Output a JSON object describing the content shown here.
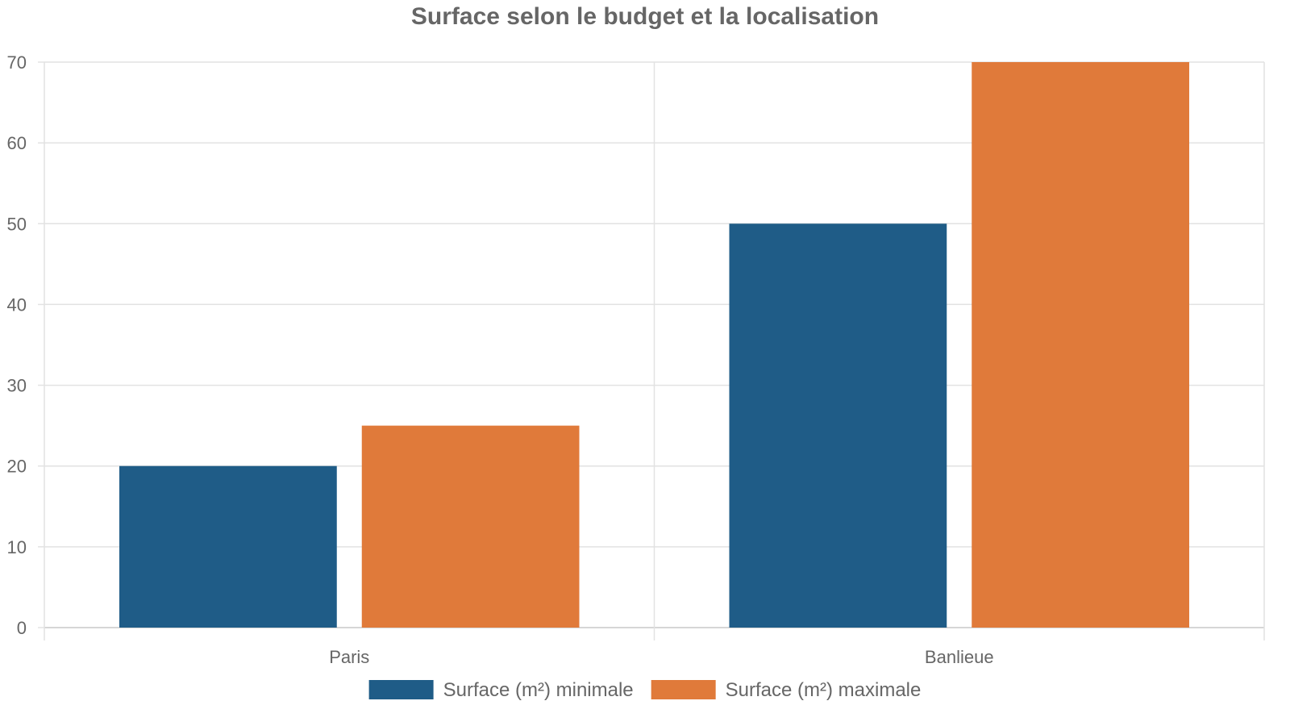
{
  "chart_data": {
    "type": "bar",
    "title": "Surface selon le budget et la localisation",
    "xlabel": "",
    "ylabel": "",
    "categories": [
      "Paris",
      "Banlieue"
    ],
    "series": [
      {
        "name": "Surface (m²) minimale",
        "color": "#1f5c87",
        "values": [
          20,
          50
        ]
      },
      {
        "name": "Surface (m²) maximale",
        "color": "#e07a3a",
        "values": [
          25,
          70
        ]
      }
    ],
    "ylim": [
      0,
      70
    ],
    "yticks": [
      0,
      10,
      20,
      30,
      40,
      50,
      60,
      70
    ],
    "grid": true,
    "legend_position": "bottom"
  }
}
